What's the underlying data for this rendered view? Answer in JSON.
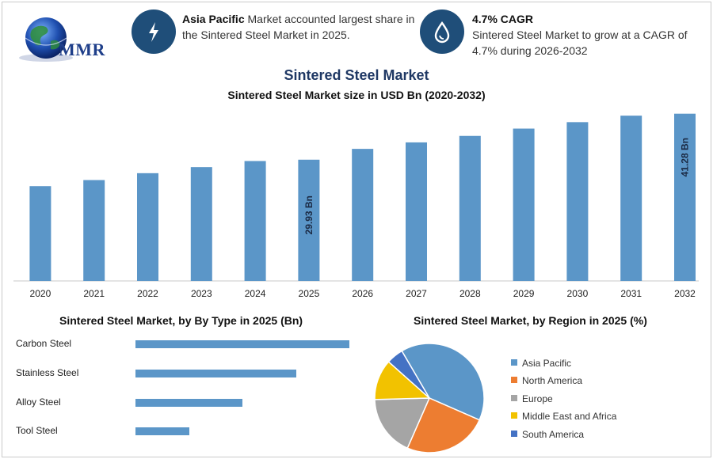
{
  "logo": {
    "text": "MMR"
  },
  "info": {
    "region_bold": "Asia Pacific",
    "region_text": " Market accounted largest share in the Sintered Steel Market in 2025.",
    "cagr_title": "4.7% CAGR",
    "cagr_text": "Sintered Steel Market to grow at a CAGR of 4.7% during 2026-2032"
  },
  "title": "Sintered Steel Market",
  "subtitle": "Sintered Steel Market size in USD Bn (2020-2032)",
  "type_title": "Sintered Steel Market, by By Type in 2025 (Bn)",
  "region_title": "Sintered Steel Market, by Region in 2025 (%)",
  "chart_data": [
    {
      "type": "bar",
      "categories": [
        "2020",
        "2021",
        "2022",
        "2023",
        "2024",
        "2025",
        "2026",
        "2027",
        "2028",
        "2029",
        "2030",
        "2031",
        "2032"
      ],
      "values": [
        23.4,
        24.9,
        26.6,
        28.1,
        29.6,
        29.93,
        32.6,
        34.2,
        35.8,
        37.6,
        39.2,
        40.8,
        41.28
      ],
      "data_labels": {
        "2025": "29.93 Bn",
        "2032": "41.28 Bn"
      },
      "ylim": [
        0,
        42
      ],
      "color": "#5b96c8"
    },
    {
      "type": "bar",
      "orientation": "horizontal",
      "categories": [
        "Carbon Steel",
        "Stainless Steel",
        "Alloy Steel",
        "Tool Steel"
      ],
      "values": [
        12.0,
        9.0,
        6.0,
        3.0
      ],
      "color": "#5b96c8"
    },
    {
      "type": "pie",
      "categories": [
        "Asia Pacific",
        "North America",
        "Europe",
        "Middle East and Africa",
        "South America"
      ],
      "values": [
        40,
        25,
        18,
        12,
        5
      ],
      "colors": [
        "#5b96c8",
        "#ed7d31",
        "#a5a5a5",
        "#f2c200",
        "#4472c4"
      ],
      "legend": "right"
    }
  ]
}
